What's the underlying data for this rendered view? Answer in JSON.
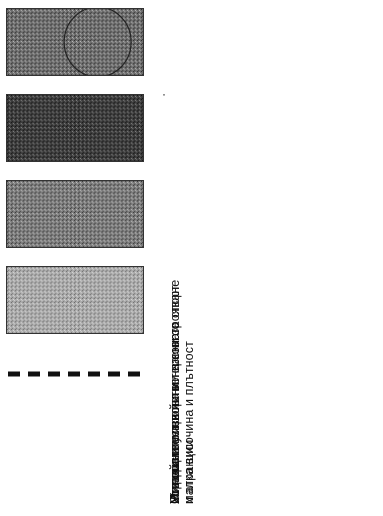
{
  "legend": {
    "items": [
      {
        "id": "sport",
        "label": "Устройствена зона и терени за спорт\nи атракции",
        "fill": "#6e6e6e",
        "has_circle": true
      },
      {
        "id": "residential",
        "label": "Жилищна устройствена зона с\nмалка височина и плътност",
        "fill": "#3a3a3a",
        "has_circle": false
      },
      {
        "id": "spring",
        "label": "Минерален извор",
        "fill": "#7a7a7a",
        "has_circle": false
      },
      {
        "id": "street",
        "label": "Улица",
        "fill": "#a8a8a8",
        "has_circle": false
      },
      {
        "id": "building-lines",
        "label": "Ограничителни линии на застрояване",
        "fill": "#111111",
        "has_circle": false
      }
    ]
  }
}
